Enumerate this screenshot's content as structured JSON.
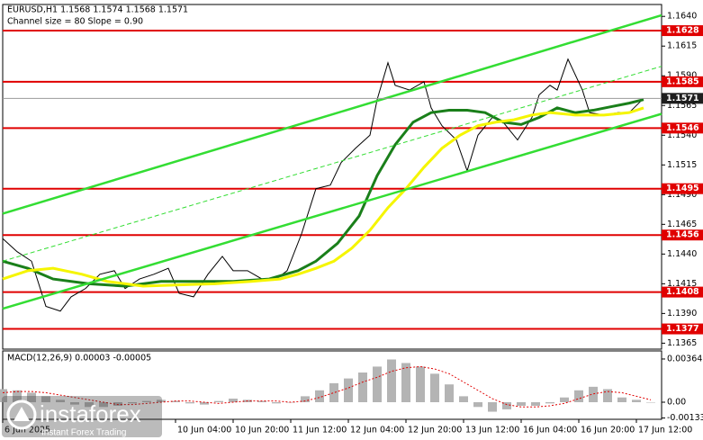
{
  "watermark": {
    "brand": "instaforex",
    "tagline": "Instant Forex Trading"
  },
  "chart_data": [
    {
      "type": "line",
      "title": "EURUSD,H1  1.1568 1.1574 1.1568 1.1571",
      "subtitle": "Channel size = 80 Slope = 0.90",
      "xlim": [
        0,
        183
      ],
      "ylim": [
        1.136,
        1.165
      ],
      "yticks": [
        {
          "value": 1.164,
          "label": "1.1640"
        },
        1.1615,
        {
          "value": 1.159,
          "label": "1.1590"
        },
        1.1565,
        {
          "value": 1.154,
          "label": "1.1540"
        },
        1.1515,
        {
          "value": 1.149,
          "label": "1.1490"
        },
        1.1465,
        {
          "value": 1.144,
          "label": "1.1440"
        },
        1.1415,
        {
          "value": 1.139,
          "label": "1.1390"
        },
        1.1365
      ],
      "series": [
        {
          "color": "#000000",
          "width": 1,
          "style": "solid",
          "x": [
            0,
            4,
            8,
            12,
            16,
            19,
            23,
            27,
            31,
            34,
            38,
            42,
            46,
            49,
            53,
            57,
            61,
            64,
            68,
            72,
            76,
            79,
            83,
            87,
            91,
            94,
            98,
            102,
            104,
            107,
            109,
            113,
            117,
            119,
            122,
            126,
            129,
            132,
            136,
            139,
            143,
            147,
            149,
            152,
            154,
            157,
            161,
            163,
            167,
            171,
            174,
            178
          ],
          "values": [
            1.1453,
            1.1442,
            1.1434,
            1.1396,
            1.1392,
            1.1404,
            1.1411,
            1.1423,
            1.1426,
            1.1411,
            1.1419,
            1.1423,
            1.1428,
            1.1407,
            1.1404,
            1.1423,
            1.1438,
            1.1426,
            1.1426,
            1.1419,
            1.1419,
            1.1426,
            1.1457,
            1.1495,
            1.1498,
            1.1517,
            1.1529,
            1.154,
            1.157,
            1.1601,
            1.1582,
            1.1578,
            1.1585,
            1.1563,
            1.1548,
            1.1536,
            1.151,
            1.154,
            1.1555,
            1.1551,
            1.1536,
            1.1555,
            1.1574,
            1.1582,
            1.1578,
            1.1604,
            1.1578,
            1.1559,
            1.1557,
            1.1559,
            1.1559,
            1.1571
          ]
        },
        {
          "color": "#1a7f1a",
          "width": 3,
          "style": "solid",
          "x": [
            0,
            7,
            14,
            24,
            34,
            44,
            54,
            64,
            74,
            82,
            87,
            93,
            99,
            104,
            109,
            114,
            119,
            124,
            129,
            134,
            139,
            144,
            149,
            154,
            159,
            164,
            169,
            174,
            178
          ],
          "values": [
            1.1434,
            1.1428,
            1.1419,
            1.1415,
            1.1413,
            1.1417,
            1.1417,
            1.1417,
            1.1419,
            1.1426,
            1.1434,
            1.1449,
            1.1472,
            1.1506,
            1.1532,
            1.1551,
            1.1559,
            1.1561,
            1.1561,
            1.1559,
            1.1551,
            1.1549,
            1.1555,
            1.1563,
            1.1559,
            1.1561,
            1.1564,
            1.1567,
            1.157
          ]
        },
        {
          "color": "#f5f500",
          "width": 3,
          "style": "solid",
          "x": [
            0,
            7,
            14,
            22,
            29,
            39,
            49,
            59,
            69,
            77,
            82,
            87,
            92,
            97,
            102,
            107,
            112,
            117,
            122,
            127,
            132,
            137,
            142,
            147,
            152,
            159,
            167,
            174,
            178
          ],
          "values": [
            1.1419,
            1.1426,
            1.1428,
            1.1423,
            1.1417,
            1.1413,
            1.1414,
            1.1415,
            1.1417,
            1.1419,
            1.1423,
            1.1428,
            1.1434,
            1.1445,
            1.146,
            1.1479,
            1.1495,
            1.1513,
            1.1529,
            1.154,
            1.1548,
            1.1551,
            1.1553,
            1.1557,
            1.1559,
            1.1557,
            1.1557,
            1.1559,
            1.1563
          ]
        },
        {
          "color": "#33dd33",
          "width": 2.5,
          "style": "solid",
          "x": [
            0,
            183
          ],
          "values": [
            1.1474,
            1.1641
          ]
        },
        {
          "color": "#33dd33",
          "width": 2.5,
          "style": "solid",
          "x": [
            0,
            183
          ],
          "values": [
            1.1394,
            1.1558
          ]
        },
        {
          "color": "#33dd33",
          "width": 1,
          "style": "dashed",
          "x": [
            0,
            183
          ],
          "values": [
            1.1434,
            1.1598
          ]
        }
      ],
      "levels": [
        1.1628,
        1.1585,
        1.1546,
        1.1495,
        1.1456,
        1.1408,
        1.1377
      ],
      "level_color": "#e00000",
      "last_price": 1.1571
    },
    {
      "type": "bar",
      "title": "MACD(12,26,9) 0.00003 -0.00005",
      "xlim": [
        0,
        183
      ],
      "ylim": [
        -0.00144,
        0.00432
      ],
      "yticks": [
        0.00364,
        {
          "value": 0,
          "label": "0.00"
        },
        -0.00133
      ],
      "xticks": [
        {
          "value": 0,
          "label": "6 Jun 2025"
        },
        {
          "value": 48,
          "label": "10 Jun 04:00"
        },
        {
          "value": 64,
          "label": "10 Jun 20:00"
        },
        {
          "value": 80,
          "label": "11 Jun 12:00"
        },
        {
          "value": 96,
          "label": "12 Jun 04:00"
        },
        {
          "value": 112,
          "label": "12 Jun 20:00"
        },
        {
          "value": 128,
          "label": "13 Jun 12:00"
        },
        {
          "value": 144,
          "label": "16 Jun 04:00"
        },
        {
          "value": 160,
          "label": "16 Jun 20:00"
        },
        {
          "value": 176,
          "label": "17 Jun 12:00"
        }
      ],
      "x": [
        0,
        4,
        8,
        12,
        16,
        20,
        24,
        28,
        32,
        36,
        40,
        44,
        48,
        52,
        56,
        60,
        64,
        68,
        72,
        76,
        80,
        84,
        88,
        92,
        96,
        100,
        104,
        108,
        112,
        116,
        120,
        124,
        128,
        132,
        136,
        140,
        144,
        148,
        152,
        156,
        160,
        164,
        168,
        172,
        176,
        180
      ],
      "values": [
        0.0011,
        0.001,
        0.0008,
        0.0005,
        0.0002,
        -0.0002,
        -0.0004,
        -0.0004,
        -0.0003,
        -0.0001,
        0.0001,
        0.0002,
        0.0001,
        -0.0001,
        -0.0002,
        0.0001,
        0.0003,
        0.0002,
        0.0001,
        -0.0001,
        0,
        0.0005,
        0.001,
        0.0016,
        0.002,
        0.0025,
        0.003,
        0.0036,
        0.0033,
        0.003,
        0.0024,
        0.0015,
        0.0005,
        -0.0004,
        -0.0008,
        -0.0006,
        -0.0003,
        -0.0003,
        -0.0001,
        0.0004,
        0.001,
        0.0013,
        0.0011,
        0.0004,
        0.0002,
        0
      ],
      "color": "#b4b4b4",
      "series": [
        {
          "color": "#e00000",
          "style": "dotted",
          "values": [
            0.0008,
            0.0009,
            0.0009,
            0.0008,
            0.0006,
            0.0004,
            0.0002,
            0,
            -0.0002,
            -0.0002,
            -0.0001,
            0,
            0.0001,
            0.0001,
            0,
            -0.0001,
            0,
            0.0001,
            0.0001,
            0.0001,
            0,
            0.0001,
            0.0004,
            0.0008,
            0.0012,
            0.0017,
            0.0021,
            0.0026,
            0.0029,
            0.003,
            0.0028,
            0.0024,
            0.0017,
            0.001,
            0.0003,
            -0.0002,
            -0.0004,
            -0.0004,
            -0.0003,
            -0.0001,
            0.0003,
            0.0007,
            0.0009,
            0.0008,
            0.0005,
            0.0002
          ]
        }
      ]
    }
  ]
}
